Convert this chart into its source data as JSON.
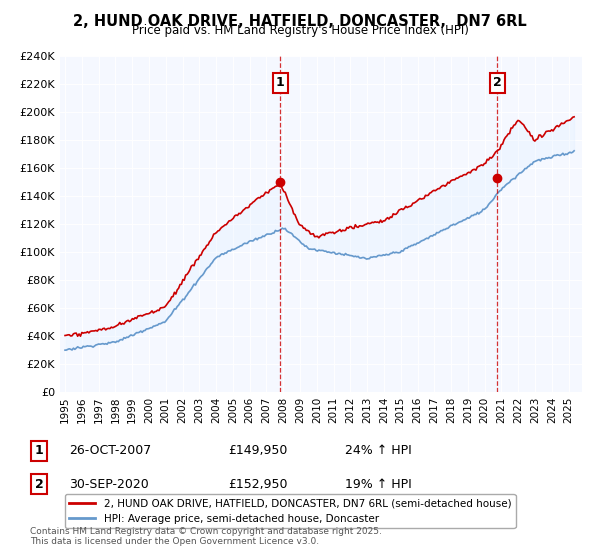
{
  "title": "2, HUND OAK DRIVE, HATFIELD, DONCASTER,  DN7 6RL",
  "subtitle": "Price paid vs. HM Land Registry's House Price Index (HPI)",
  "ylabel_ticks": [
    "£0",
    "£20K",
    "£40K",
    "£60K",
    "£80K",
    "£100K",
    "£120K",
    "£140K",
    "£160K",
    "£180K",
    "£200K",
    "£220K",
    "£240K"
  ],
  "ylim": [
    0,
    240000
  ],
  "ytick_vals": [
    0,
    20000,
    40000,
    60000,
    80000,
    100000,
    120000,
    140000,
    160000,
    180000,
    200000,
    220000,
    240000
  ],
  "sale1_year": 2007.82,
  "sale1_price": 149950,
  "sale2_year": 2020.75,
  "sale2_price": 152950,
  "sale1_label": "1",
  "sale2_label": "2",
  "sale1_date": "26-OCT-2007",
  "sale1_amount": "£149,950",
  "sale1_hpi": "24% ↑ HPI",
  "sale2_date": "30-SEP-2020",
  "sale2_amount": "£152,950",
  "sale2_hpi": "19% ↑ HPI",
  "line1_color": "#cc0000",
  "line2_color": "#6699cc",
  "fill_color": "#ddeeff",
  "legend_line1": "2, HUND OAK DRIVE, HATFIELD, DONCASTER, DN7 6RL (semi-detached house)",
  "legend_line2": "HPI: Average price, semi-detached house, Doncaster",
  "footer": "Contains HM Land Registry data © Crown copyright and database right 2025.\nThis data is licensed under the Open Government Licence v3.0.",
  "background_color": "#ffffff",
  "plot_bg_color": "#f5f8ff"
}
